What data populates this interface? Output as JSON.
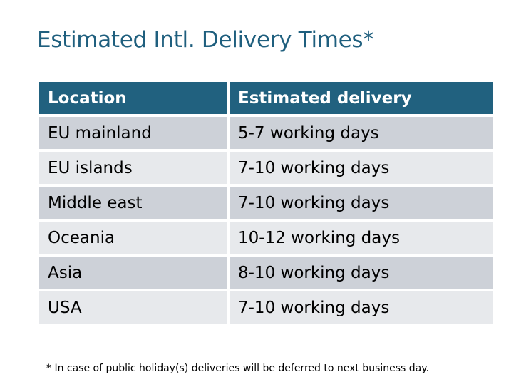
{
  "title": "Estimated Intl. Delivery Times*",
  "table": {
    "headers": [
      "Location",
      "Estimated delivery"
    ],
    "rows": [
      [
        "EU mainland",
        "5-7 working days"
      ],
      [
        "EU islands",
        "7-10 working days"
      ],
      [
        "Middle east",
        "7-10 working days"
      ],
      [
        "Oceania",
        "10-12 working days"
      ],
      [
        "Asia",
        "8-10 working days"
      ],
      [
        "USA",
        "7-10 working days"
      ]
    ]
  },
  "footnote": "* In case of public holiday(s) deliveries will be deferred to next business day.",
  "colors": {
    "title": "#1f5f7e",
    "header_bg": "#21617f",
    "row_dark": "#cdd1d8",
    "row_light": "#e7e9ec"
  }
}
